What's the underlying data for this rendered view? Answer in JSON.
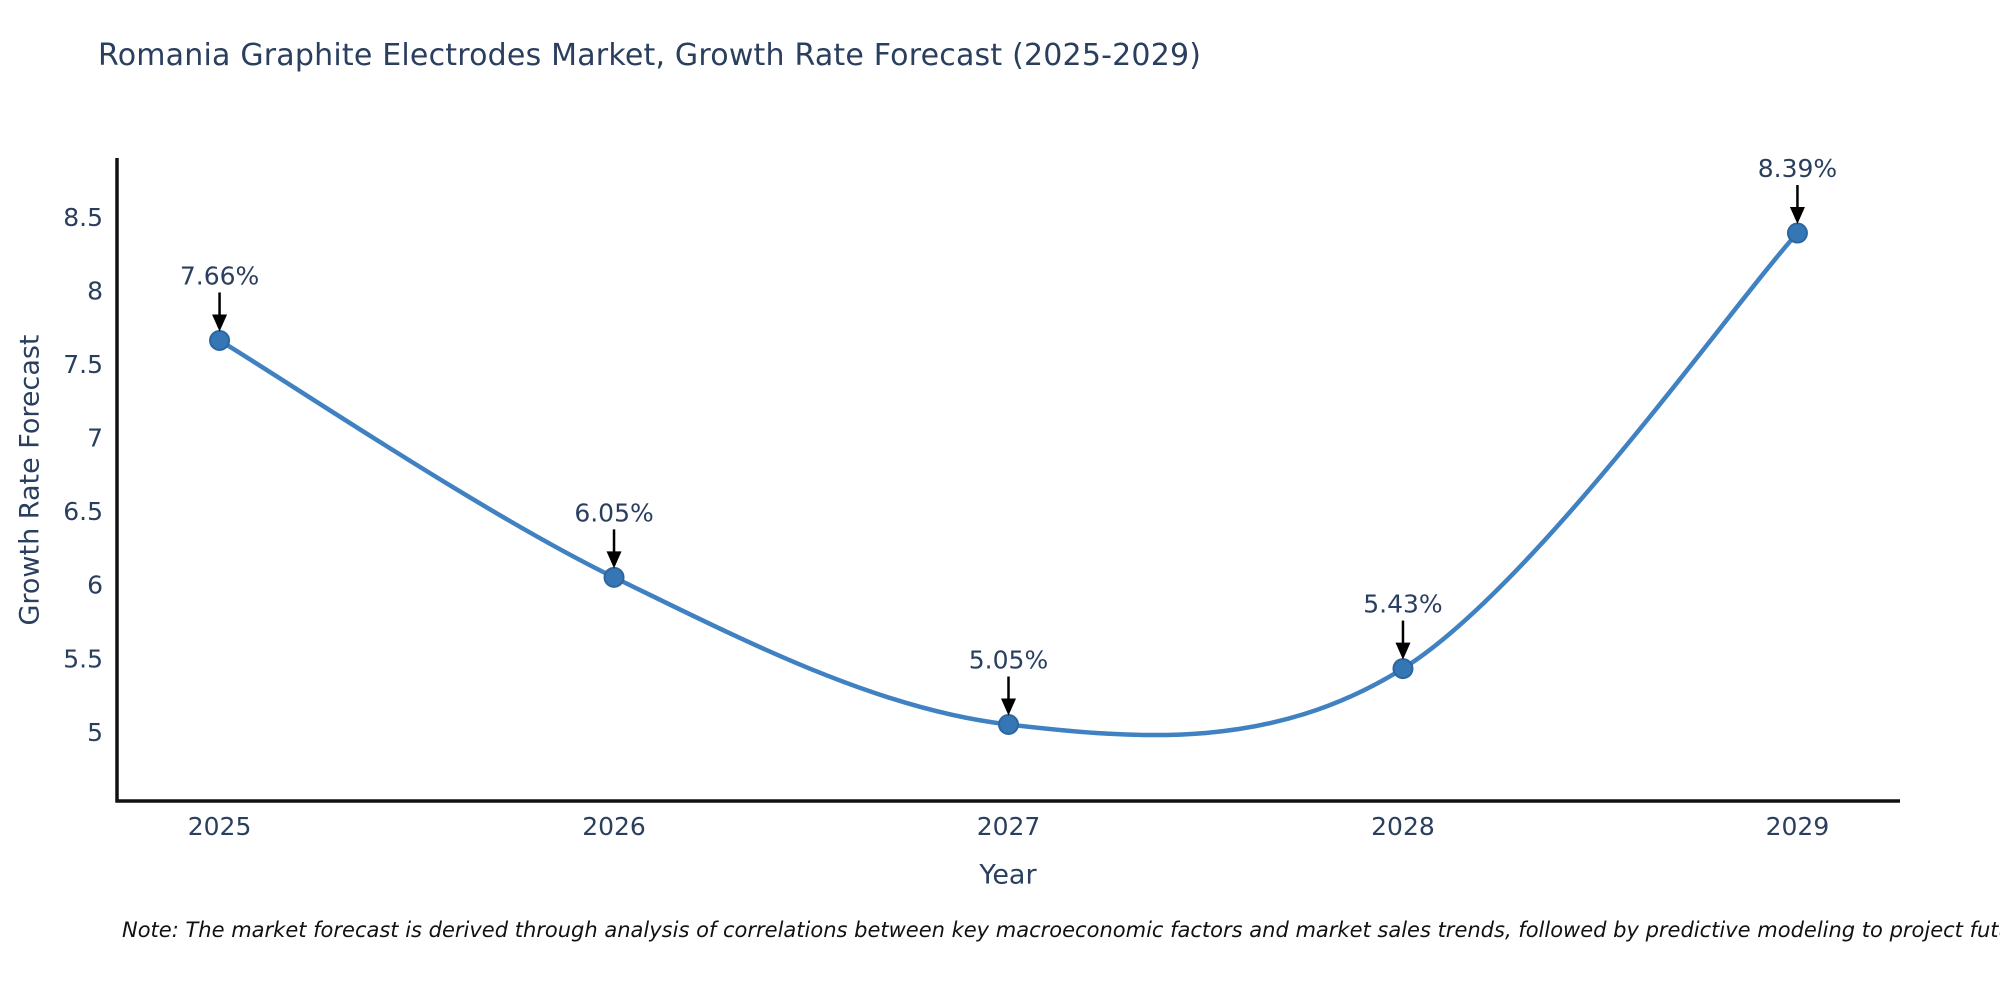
{
  "chart_data": {
    "type": "line",
    "title": "Romania Graphite Electrodes Market, Growth Rate Forecast (2025-2029)",
    "xlabel": "Year",
    "ylabel": "Growth Rate Forecast",
    "x": [
      2025,
      2026,
      2027,
      2028,
      2029
    ],
    "series": [
      {
        "name": "Growth Rate Forecast",
        "values": [
          7.66,
          6.05,
          5.05,
          5.43,
          8.39
        ]
      }
    ],
    "point_labels": [
      "7.66%",
      "6.05%",
      "5.05%",
      "5.43%",
      "8.39%"
    ],
    "x_tick_labels": [
      "2025",
      "2026",
      "2027",
      "2028",
      "2029"
    ],
    "y_ticks": [
      5,
      5.5,
      6,
      6.5,
      7,
      7.5,
      8,
      8.5
    ],
    "y_tick_labels": [
      "5",
      "5.5",
      "6",
      "6.5",
      "7",
      "7.5",
      "8",
      "8.5"
    ],
    "xlim": [
      2024.74,
      2029.26
    ],
    "ylim": [
      4.53,
      8.9
    ],
    "grid": false,
    "line_shape": "spline",
    "legend": "none",
    "colors": {
      "line": "#3f81c1",
      "marker": "#3577b4",
      "marker_edge": "#2b66a0",
      "arrow": "#000000",
      "text": "#2a3f5f",
      "axis": "#111111",
      "note_text": "#111111",
      "background": "#ffffff"
    },
    "note": "Note: The market forecast is derived through analysis of correlations between key macroeconomic factors and market sales trends, followed by predictive modeling to project future sales"
  }
}
